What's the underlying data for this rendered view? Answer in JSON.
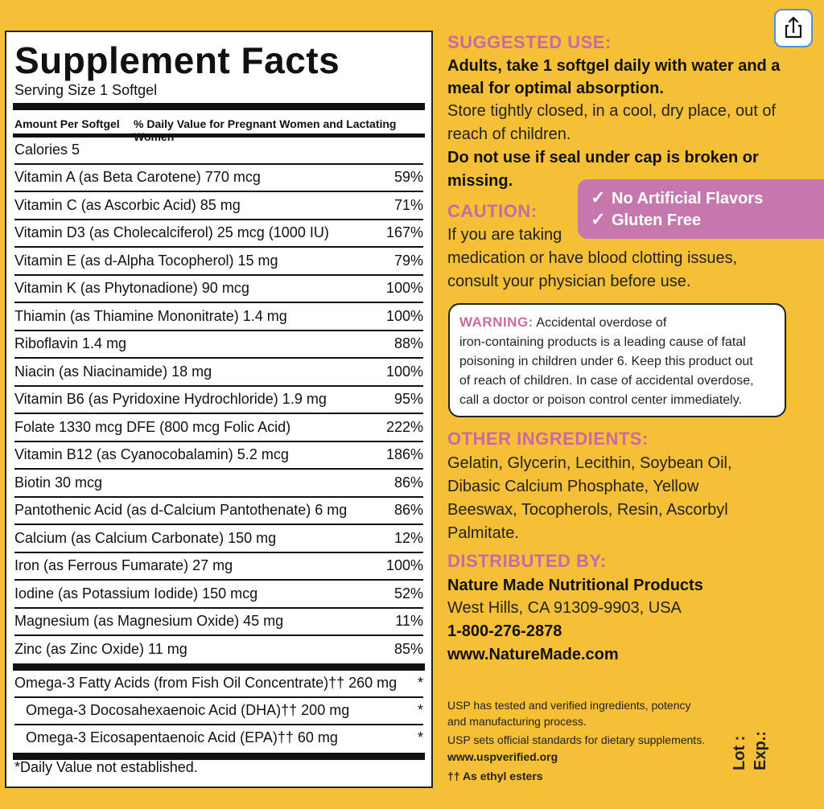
{
  "facts": {
    "title": "Supplement Facts",
    "serving": "Serving Size 1 Softgel",
    "header_left": "Amount Per Softgel",
    "header_right": "% Daily Value for Pregnant Women and Lactating Women",
    "calories": "Calories 5",
    "nutrients": [
      {
        "name": "Vitamin A (as Beta Carotene) 770 mcg",
        "pct": "59%"
      },
      {
        "name": "Vitamin C (as Ascorbic Acid) 85 mg",
        "pct": "71%"
      },
      {
        "name": "Vitamin D3 (as Cholecalciferol) 25 mcg (1000 IU)",
        "pct": "167%"
      },
      {
        "name": "Vitamin E (as d-Alpha Tocopherol) 15 mg",
        "pct": "79%"
      },
      {
        "name": "Vitamin K (as Phytonadione) 90 mcg",
        "pct": "100%"
      },
      {
        "name": "Thiamin (as Thiamine Mononitrate) 1.4 mg",
        "pct": "100%"
      },
      {
        "name": "Riboflavin 1.4 mg",
        "pct": "88%"
      },
      {
        "name": "Niacin (as Niacinamide) 18 mg",
        "pct": "100%"
      },
      {
        "name": "Vitamin B6 (as Pyridoxine Hydrochloride) 1.9 mg",
        "pct": "95%"
      },
      {
        "name": "Folate 1330 mcg DFE (800 mcg Folic Acid)",
        "pct": "222%"
      },
      {
        "name": "Vitamin B12 (as Cyanocobalamin) 5.2 mcg",
        "pct": "186%"
      },
      {
        "name": "Biotin 30 mcg",
        "pct": "86%"
      },
      {
        "name": "Pantothenic Acid (as d-Calcium Pantothenate) 6 mg",
        "pct": "86%"
      },
      {
        "name": "Calcium (as Calcium Carbonate) 150 mg",
        "pct": "12%"
      },
      {
        "name": "Iron (as Ferrous Fumarate) 27 mg",
        "pct": "100%"
      },
      {
        "name": "Iodine (as Potassium Iodide) 150 mcg",
        "pct": "52%"
      },
      {
        "name": "Magnesium (as Magnesium Oxide) 45 mg",
        "pct": "11%"
      },
      {
        "name": "Zinc (as Zinc Oxide) 11 mg",
        "pct": "85%"
      }
    ],
    "omega": [
      {
        "name": "Omega-3 Fatty Acids (from Fish Oil Concentrate)†† 260 mg",
        "pct": "*"
      },
      {
        "name": "Omega-3 Docosahexaenoic Acid (DHA)†† 200 mg",
        "pct": "*"
      },
      {
        "name": "Omega-3 Eicosapentaenoic Acid (EPA)†† 60 mg",
        "pct": "*"
      }
    ],
    "footnote": "*Daily Value not established."
  },
  "suggested": {
    "heading": "SUGGESTED USE:",
    "line1": "Adults, take 1 softgel daily with water and a",
    "line2": "meal for optimal absorption.",
    "line3": "Store tightly closed, in a cool, dry place, out of",
    "line4": "reach of children.",
    "line5": "Do not use if seal under cap is broken or",
    "line6": "missing."
  },
  "badge": {
    "check": "✓",
    "line1": "No Artificial Flavors",
    "line2": "Gluten Free"
  },
  "caution": {
    "heading": "CAUTION:",
    "line1": "If you are taking",
    "line2": "medication or have blood clotting issues,",
    "line3": "consult your physician before use."
  },
  "warning": {
    "heading": "WARNING:",
    "line1": "Accidental overdose of",
    "line2": "iron-containing products is a leading cause of fatal",
    "line3": "poisoning in children under 6. Keep this product out",
    "line4": "of reach of children. In case of accidental overdose,",
    "line5": "call a doctor or poison control center immediately."
  },
  "ingredients": {
    "heading": "OTHER INGREDIENTS:",
    "line1": "Gelatin, Glycerin, Lecithin, Soybean Oil,",
    "line2": "Dibasic Calcium Phosphate, Yellow",
    "line3": "Beeswax, Tocopherols, Resin, Ascorbyl",
    "line4": "Palmitate."
  },
  "distributor": {
    "heading": "DISTRIBUTED BY:",
    "company": "Nature Made Nutritional Products",
    "address": "West Hills, CA 91309-9903, USA",
    "phone": "1-800-276-2878",
    "web": "www.NatureMade.com"
  },
  "usp": {
    "line1": "USP has tested and verified ingredients, potency",
    "line2": "and manufacturing process.",
    "line3": "USP sets official standards for dietary supplements.",
    "line4": "www.uspverified.org",
    "line5": "†† As ethyl esters"
  },
  "lot": {
    "lot": "Lot :",
    "exp": "Exp.:"
  },
  "share_icon": "share-icon"
}
